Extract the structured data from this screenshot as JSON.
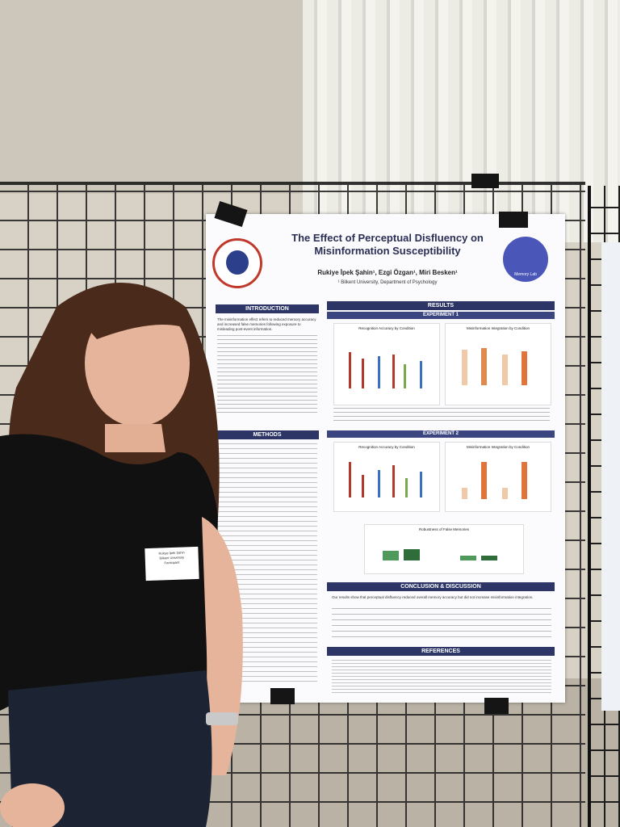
{
  "poster": {
    "title": "The Effect of Perceptual Disfluency on Misinformation Susceptibility",
    "authors": "Rukiye İpek Şahin¹, Ezgi Özgan¹, Miri Besken¹",
    "affiliation": "¹ Bilkent University, Department of Psychology",
    "logo_right": "Memory Lab",
    "sections": {
      "introduction": "INTRODUCTION",
      "methods": "METHODS",
      "results": "RESULTS",
      "experiment_1": "EXPERIMENT 1",
      "experiment_2": "EXPERIMENT 2",
      "conclusion": "CONCLUSION & DISCUSSION",
      "references": "REFERENCES"
    },
    "intro_text": "The misinformation effect refers to reduced memory accuracy and increased false memories following exposure to misleading post-event information.",
    "chart_titles": {
      "e1_recognition": "Recognition Accuracy by Condition",
      "e1_integration": "Misinformation Integration by Condition",
      "e2_recognition": "Recognition Accuracy by Condition",
      "e2_integration": "Misinformation Integration by Condition",
      "robustness": "Robustness of False Memories"
    },
    "conclusion_text": "Our results show that perceptual disfluency reduced overall memory accuracy but did not increase misinformation integration."
  },
  "name_tag": {
    "name": "Rukiye İpek Şahin",
    "org": "Bilkent University",
    "role": "Participant"
  }
}
